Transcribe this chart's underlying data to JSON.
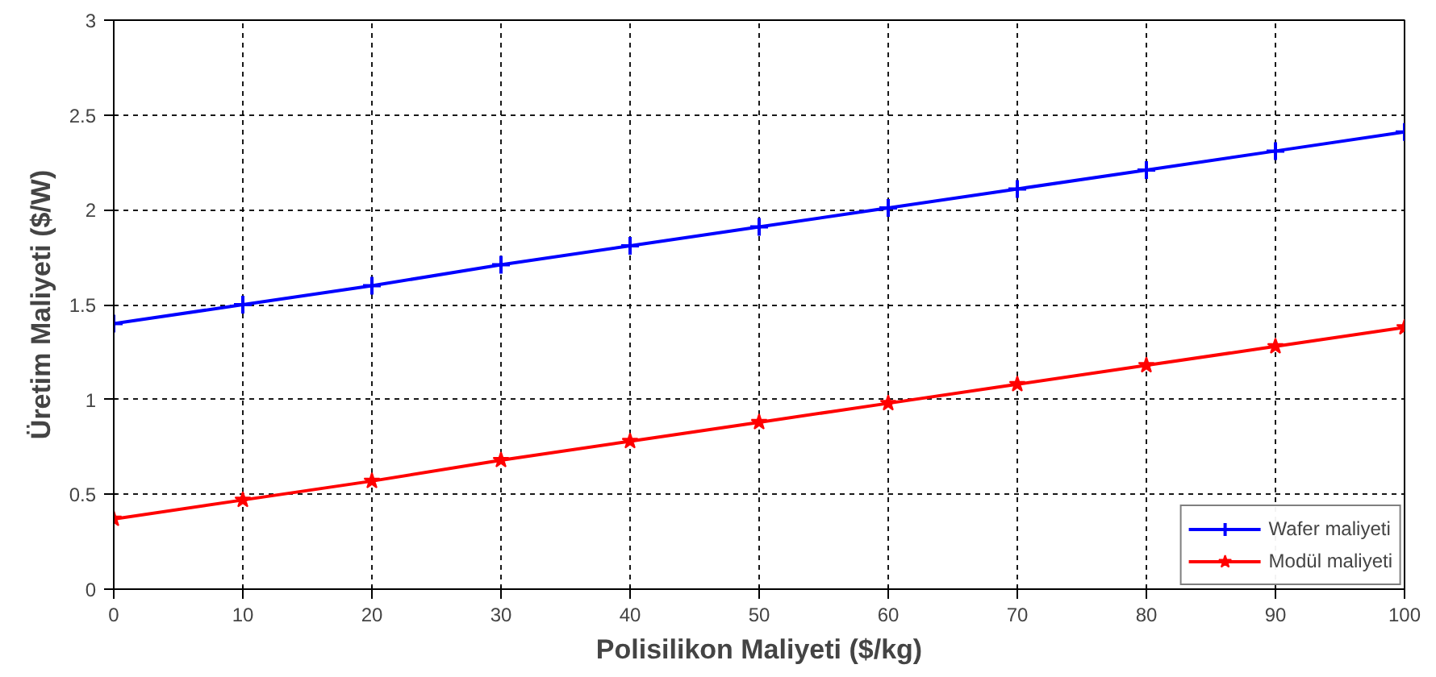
{
  "chart_data": {
    "type": "line",
    "xlabel": "Polisilikon Maliyeti ($/kg)",
    "ylabel": "Üretim Maliyeti ($/W)",
    "x": [
      0,
      10,
      20,
      30,
      40,
      50,
      60,
      70,
      80,
      90,
      100
    ],
    "series": [
      {
        "name": "Wafer maliyeti",
        "color": "#0000ff",
        "marker": "cross",
        "values": [
          1.4,
          1.5,
          1.6,
          1.71,
          1.81,
          1.91,
          2.01,
          2.11,
          2.21,
          2.31,
          2.41
        ]
      },
      {
        "name": "Modül maliyeti",
        "color": "#ff0000",
        "marker": "star",
        "values": [
          0.37,
          0.47,
          0.57,
          0.68,
          0.78,
          0.88,
          0.98,
          1.08,
          1.18,
          1.28,
          1.38
        ]
      }
    ],
    "xlim": [
      0,
      100
    ],
    "ylim": [
      0,
      3
    ],
    "xticks": [
      0,
      10,
      20,
      30,
      40,
      50,
      60,
      70,
      80,
      90,
      100
    ],
    "yticks": [
      0,
      0.5,
      1,
      1.5,
      2,
      2.5,
      3
    ],
    "grid": true,
    "legend": "bottom right",
    "line_style": "solid"
  }
}
